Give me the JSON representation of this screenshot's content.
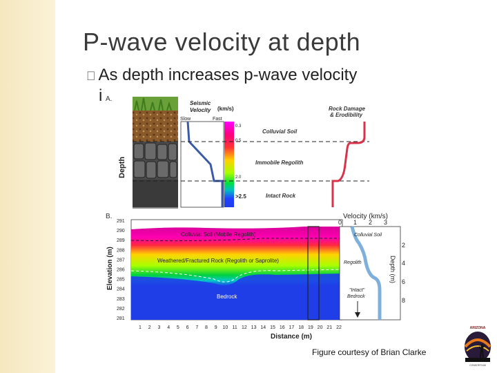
{
  "slide": {
    "title": "P-wave velocity at depth",
    "bullet_marker": "",
    "bullet_text": "As depth increases p-wave velocity",
    "bullet_continuation": "i",
    "caption": "Figure courtesy of Brian Clarke"
  },
  "panel_a": {
    "label": "A.",
    "depth_label": "Depth",
    "velocity_title_1": "Seismic",
    "velocity_title_2": "Velocity",
    "velocity_unit": "(km/s)",
    "slow_label": "Slow",
    "fast_label": "Fast",
    "scale_ticks": [
      "0.3",
      "0.5",
      "2.0",
      ">2.5"
    ],
    "layers": [
      "Colluvial Soil",
      "Immobile Regolith",
      "Intact Rock"
    ],
    "damage_title_1": "Rock Damage",
    "damage_title_2": "& Erodibility"
  },
  "panel_b": {
    "label": "B.",
    "y_axis_label": "Elevation (m)",
    "x_axis_label": "Distance (m)",
    "y_ticks": [
      "291",
      "290",
      "289",
      "288",
      "287",
      "286",
      "285",
      "284",
      "283",
      "282",
      "281"
    ],
    "x_ticks": [
      "1",
      "2",
      "3",
      "4",
      "5",
      "6",
      "7",
      "8",
      "9",
      "10",
      "11",
      "12",
      "13",
      "14",
      "15",
      "16",
      "17",
      "18",
      "19",
      "20",
      "21",
      "22"
    ],
    "zones": [
      "Colluvial Soil (Mobile Regolith)",
      "Weathered/Fractured Rock (Regolith or Saprolite)",
      "Bedrock"
    ],
    "profile_title": "Velocity (km/s)",
    "profile_x_ticks": [
      "0",
      "1",
      "2",
      "3"
    ],
    "profile_depth_label": "Depth (m)",
    "profile_depth_ticks": [
      "2",
      "4",
      "6",
      "8"
    ],
    "profile_labels": [
      "Colluvial Soil",
      "Regolith",
      "\"Intact\"",
      "Bedrock"
    ]
  },
  "colors": {
    "leftbar": "#f5e7bf",
    "title_text": "#3a3a3a",
    "velocity_line": "#3b5ba8",
    "damage_line": "#d8324a",
    "profile_line": "#7fb0dc",
    "bedrock_blue": "#1f3ee8"
  }
}
